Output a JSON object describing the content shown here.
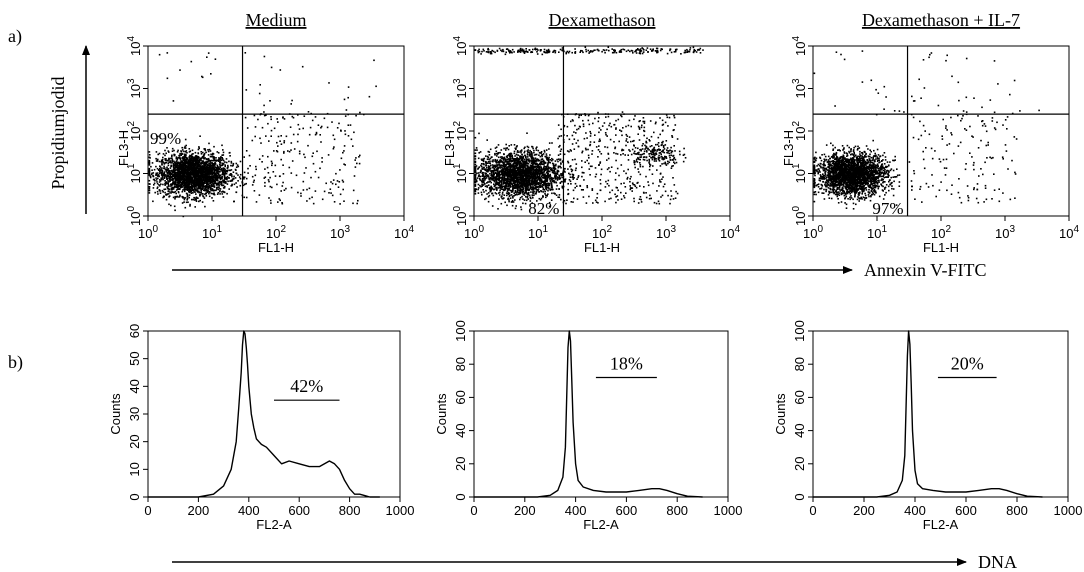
{
  "panels": {
    "a_label": "a)",
    "b_label": "b)"
  },
  "colors": {
    "ink": "#000000",
    "background": "#ffffff"
  },
  "axis_annotations": {
    "y_arrow_label": "Propidiumjodid",
    "annexin_arrow_label": "Annexin V-FITC",
    "dna_arrow_label": "DNA"
  },
  "chart_data": [
    {
      "type": "scatter",
      "title": "Medium",
      "xlabel": "FL1-H",
      "ylabel": "FL3-H",
      "x_scale": "log",
      "y_scale": "log",
      "xlim": [
        1,
        10000
      ],
      "ylim": [
        1,
        10000
      ],
      "x_ticks": [
        "10^0",
        "10^1",
        "10^2",
        "10^3",
        "10^4"
      ],
      "y_ticks": [
        "10^0",
        "10^1",
        "10^2",
        "10^3",
        "10^4"
      ],
      "gate": {
        "x": 30,
        "y": 250
      },
      "annotation": {
        "text": "99%",
        "quadrant": "lower-left"
      },
      "population": {
        "center": [
          5,
          10
        ],
        "spread_decades": [
          0.28,
          0.25
        ],
        "events": 2600
      },
      "tail_events": {
        "x_range": [
          30,
          2000
        ],
        "y_range": [
          2,
          300
        ],
        "count": 230
      },
      "upper_events": {
        "count": 35
      }
    },
    {
      "type": "scatter",
      "title": "Dexamethason",
      "xlabel": "FL1-H",
      "ylabel": "FL3-H",
      "x_scale": "log",
      "y_scale": "log",
      "xlim": [
        1,
        10000
      ],
      "ylim": [
        1,
        10000
      ],
      "x_ticks": [
        "10^0",
        "10^1",
        "10^2",
        "10^3",
        "10^4"
      ],
      "y_ticks": [
        "10^0",
        "10^1",
        "10^2",
        "10^3",
        "10^4"
      ],
      "gate": {
        "x": 25,
        "y": 250
      },
      "annotation": {
        "text": "82%",
        "quadrant": "lower-left"
      },
      "population": {
        "center": [
          5,
          10
        ],
        "spread_decades": [
          0.32,
          0.27
        ],
        "events": 2400
      },
      "secondary_population": {
        "center": [
          600,
          30
        ],
        "spread_decades": [
          0.2,
          0.15
        ],
        "events": 180
      },
      "tail_events": {
        "x_range": [
          20,
          1500
        ],
        "y_range": [
          2,
          300
        ],
        "count": 420
      },
      "upper_events": {
        "y": 8000,
        "count": 260
      }
    },
    {
      "type": "scatter",
      "title": "Dexamethason + IL-7",
      "xlabel": "FL1-H",
      "ylabel": "FL3-H",
      "x_scale": "log",
      "y_scale": "log",
      "xlim": [
        1,
        10000
      ],
      "ylim": [
        1,
        10000
      ],
      "x_ticks": [
        "10^0",
        "10^1",
        "10^2",
        "10^3",
        "10^4"
      ],
      "y_ticks": [
        "10^0",
        "10^1",
        "10^2",
        "10^3",
        "10^4"
      ],
      "gate": {
        "x": 30,
        "y": 250
      },
      "annotation": {
        "text": "97%",
        "quadrant": "lower-left"
      },
      "population": {
        "center": [
          4,
          10
        ],
        "spread_decades": [
          0.27,
          0.24
        ],
        "events": 2400
      },
      "tail_events": {
        "x_range": [
          30,
          1500
        ],
        "y_range": [
          2,
          300
        ],
        "count": 140
      },
      "upper_events": {
        "count": 45
      }
    },
    {
      "type": "line",
      "xlabel": "FL2-A",
      "ylabel": "Counts",
      "xlim": [
        0,
        1000
      ],
      "ylim": [
        0,
        60
      ],
      "x_ticks": [
        0,
        200,
        400,
        600,
        800,
        1000
      ],
      "y_ticks": [
        0,
        10,
        20,
        30,
        40,
        50,
        60
      ],
      "annotation": {
        "text": "42%",
        "x_range": [
          500,
          760
        ],
        "y": 35
      },
      "x": [
        0,
        200,
        260,
        300,
        330,
        350,
        360,
        370,
        375,
        380,
        385,
        390,
        395,
        400,
        410,
        420,
        430,
        440,
        450,
        470,
        500,
        530,
        560,
        600,
        640,
        680,
        720,
        740,
        760,
        780,
        800,
        820,
        840,
        860,
        880,
        920
      ],
      "values": [
        0,
        0,
        1,
        4,
        10,
        20,
        32,
        45,
        55,
        60,
        59,
        54,
        48,
        40,
        30,
        25,
        21,
        20,
        19,
        18,
        15,
        12,
        13,
        12,
        11,
        11,
        13,
        12,
        10,
        6,
        3,
        1,
        1,
        0.5,
        0,
        0
      ]
    },
    {
      "type": "line",
      "xlabel": "FL2-A",
      "ylabel": "Counts",
      "xlim": [
        0,
        1000
      ],
      "ylim": [
        0,
        100
      ],
      "x_ticks": [
        0,
        200,
        400,
        600,
        800,
        1000
      ],
      "y_ticks": [
        0,
        20,
        40,
        60,
        80,
        100
      ],
      "annotation": {
        "text": "18%",
        "x_range": [
          480,
          720
        ],
        "y": 72
      },
      "x": [
        0,
        250,
        300,
        330,
        350,
        360,
        365,
        370,
        375,
        380,
        385,
        390,
        400,
        410,
        430,
        470,
        520,
        600,
        650,
        700,
        730,
        760,
        800,
        840,
        900
      ],
      "values": [
        0,
        0,
        1,
        4,
        12,
        30,
        60,
        90,
        100,
        94,
        70,
        45,
        20,
        10,
        6,
        4,
        3,
        3,
        4,
        5,
        5,
        4,
        2,
        0.5,
        0
      ]
    },
    {
      "type": "line",
      "xlabel": "FL2-A",
      "ylabel": "Counts",
      "xlim": [
        0,
        1000
      ],
      "ylim": [
        0,
        100
      ],
      "x_ticks": [
        0,
        200,
        400,
        600,
        800,
        1000
      ],
      "y_ticks": [
        0,
        20,
        40,
        60,
        80,
        100
      ],
      "annotation": {
        "text": "20%",
        "x_range": [
          490,
          720
        ],
        "y": 72
      },
      "x": [
        0,
        250,
        300,
        330,
        350,
        360,
        365,
        370,
        375,
        380,
        385,
        390,
        400,
        410,
        430,
        470,
        520,
        600,
        650,
        700,
        730,
        760,
        800,
        840,
        900
      ],
      "values": [
        0,
        0,
        1,
        3,
        10,
        25,
        55,
        85,
        100,
        92,
        68,
        40,
        16,
        8,
        5,
        4,
        3,
        3,
        4,
        5,
        5,
        4,
        2,
        0.5,
        0
      ]
    }
  ]
}
